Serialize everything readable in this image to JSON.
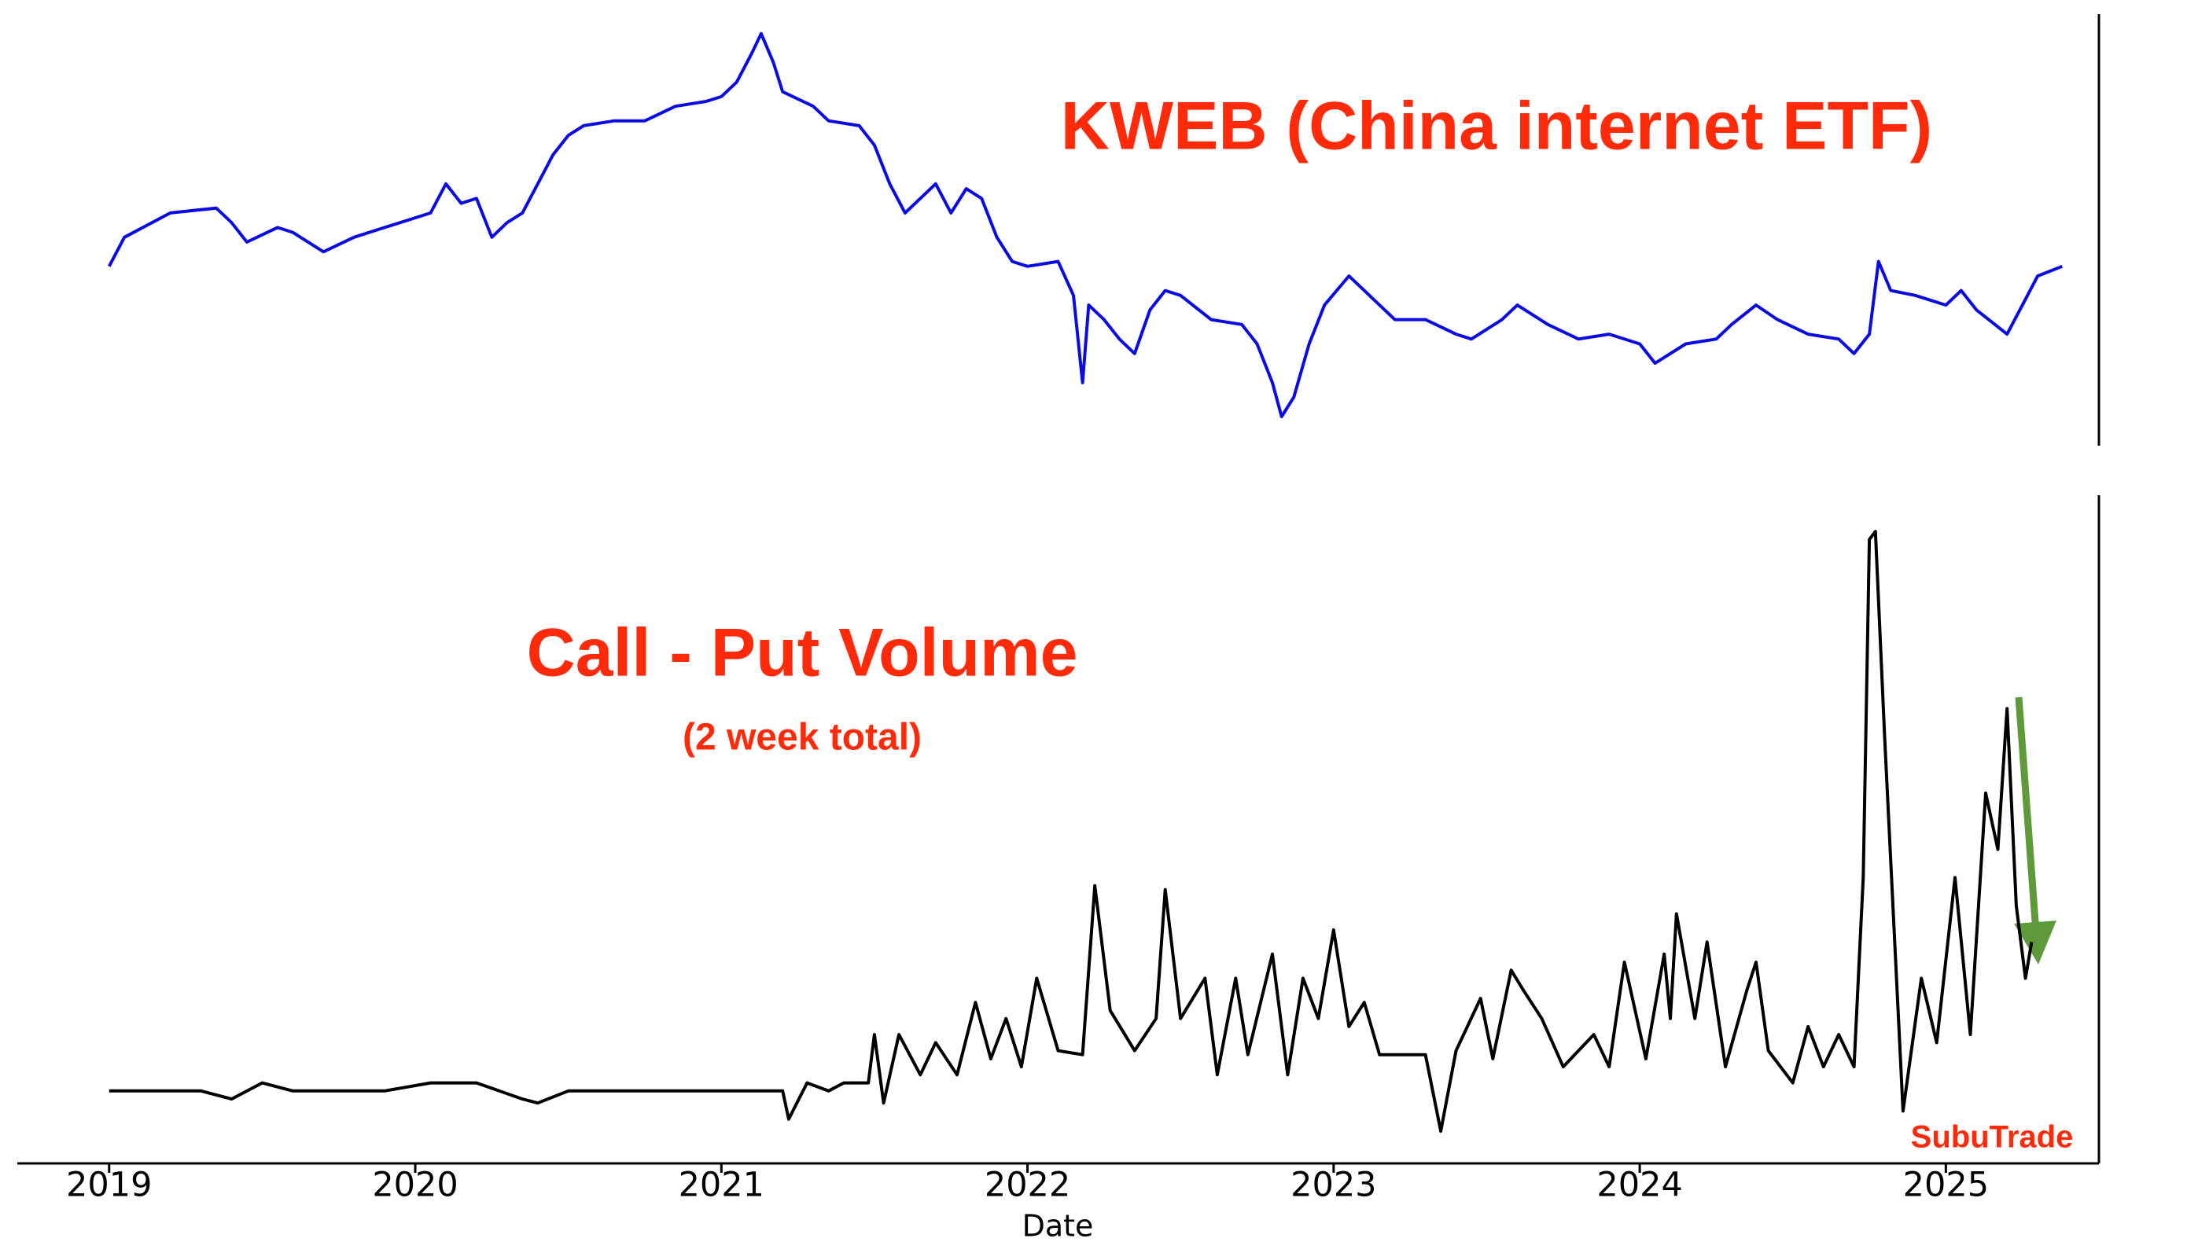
{
  "chart_data": [
    {
      "type": "line",
      "title": "KWEB (China internet ETF)",
      "xlim": [
        2018.7,
        2025.5
      ],
      "ylim": [
        15,
        104
      ],
      "series": [
        {
          "name": "KWEB",
          "color": "#0a0ae6",
          "x": [
            2019.0,
            2019.05,
            2019.2,
            2019.35,
            2019.4,
            2019.45,
            2019.55,
            2019.6,
            2019.7,
            2019.8,
            2019.9,
            2020.0,
            2020.05,
            2020.1,
            2020.15,
            2020.2,
            2020.25,
            2020.3,
            2020.35,
            2020.4,
            2020.45,
            2020.5,
            2020.55,
            2020.65,
            2020.75,
            2020.85,
            2020.95,
            2021.0,
            2021.05,
            2021.1,
            2021.13,
            2021.17,
            2021.2,
            2021.3,
            2021.35,
            2021.45,
            2021.5,
            2021.55,
            2021.6,
            2021.65,
            2021.7,
            2021.75,
            2021.8,
            2021.85,
            2021.9,
            2021.95,
            2022.0,
            2022.1,
            2022.15,
            2022.18,
            2022.2,
            2022.25,
            2022.3,
            2022.35,
            2022.4,
            2022.45,
            2022.5,
            2022.6,
            2022.7,
            2022.75,
            2022.8,
            2022.83,
            2022.87,
            2022.92,
            2022.97,
            2023.05,
            2023.1,
            2023.2,
            2023.3,
            2023.4,
            2023.45,
            2023.55,
            2023.6,
            2023.7,
            2023.8,
            2023.9,
            2024.0,
            2024.05,
            2024.15,
            2024.25,
            2024.3,
            2024.38,
            2024.45,
            2024.55,
            2024.65,
            2024.7,
            2024.75,
            2024.78,
            2024.82,
            2024.9,
            2025.0,
            2025.05,
            2025.1,
            2025.2,
            2025.25,
            2025.3,
            2025.38
          ],
          "values": [
            52,
            58,
            63,
            64,
            61,
            57,
            60,
            59,
            55,
            58,
            60,
            62,
            63,
            69,
            65,
            66,
            58,
            61,
            63,
            69,
            75,
            79,
            81,
            82,
            82,
            85,
            86,
            87,
            90,
            96,
            100,
            94,
            88,
            85,
            82,
            81,
            77,
            69,
            63,
            66,
            69,
            63,
            68,
            66,
            58,
            53,
            52,
            53,
            46,
            28,
            44,
            41,
            37,
            34,
            43,
            47,
            46,
            41,
            40,
            36,
            28,
            21,
            25,
            36,
            44,
            50,
            47,
            41,
            41,
            38,
            37,
            41,
            44,
            40,
            37,
            38,
            36,
            32,
            36,
            37,
            40,
            44,
            41,
            38,
            37,
            34,
            38,
            53,
            47,
            46,
            44,
            47,
            43,
            38,
            44,
            50,
            52
          ]
        }
      ]
    },
    {
      "type": "line",
      "title": "Call - Put Volume",
      "subtitle": "(2 week total)",
      "xlabel": "Date",
      "annotation": "SubuTrade",
      "xlim": [
        2018.7,
        2025.5
      ],
      "ylim": [
        -0.9,
        7.4
      ],
      "xticks": [
        2019,
        2020,
        2021,
        2022,
        2023,
        2024,
        2025
      ],
      "series": [
        {
          "name": "Call - Put Volume",
          "color": "#000000",
          "x": [
            2019.0,
            2019.3,
            2019.4,
            2019.5,
            2019.6,
            2019.9,
            2020.05,
            2020.2,
            2020.35,
            2020.4,
            2020.5,
            2020.9,
            2021.0,
            2021.2,
            2021.22,
            2021.28,
            2021.35,
            2021.4,
            2021.48,
            2021.5,
            2021.53,
            2021.58,
            2021.65,
            2021.7,
            2021.77,
            2021.83,
            2021.88,
            2021.93,
            2021.98,
            2022.03,
            2022.1,
            2022.18,
            2022.22,
            2022.27,
            2022.35,
            2022.42,
            2022.45,
            2022.5,
            2022.58,
            2022.62,
            2022.68,
            2022.72,
            2022.8,
            2022.85,
            2022.9,
            2022.95,
            2023.0,
            2023.05,
            2023.1,
            2023.15,
            2023.3,
            2023.35,
            2023.4,
            2023.48,
            2023.52,
            2023.58,
            2023.62,
            2023.68,
            2023.75,
            2023.85,
            2023.9,
            2023.95,
            2024.02,
            2024.08,
            2024.1,
            2024.12,
            2024.18,
            2024.22,
            2024.28,
            2024.35,
            2024.38,
            2024.42,
            2024.5,
            2024.55,
            2024.6,
            2024.65,
            2024.7,
            2024.73,
            2024.75,
            2024.77,
            2024.8,
            2024.86,
            2024.92,
            2024.97,
            2025.03,
            2025.08,
            2025.13,
            2025.17,
            2025.2,
            2025.23,
            2025.26,
            2025.28
          ],
          "values": [
            0,
            0,
            -0.1,
            0.1,
            0,
            0,
            0.1,
            0.1,
            -0.1,
            -0.15,
            0,
            0,
            0,
            0,
            -0.35,
            0.1,
            0,
            0.1,
            0.1,
            0.7,
            -0.15,
            0.7,
            0.2,
            0.6,
            0.2,
            1.1,
            0.4,
            0.9,
            0.3,
            1.4,
            0.5,
            0.45,
            2.55,
            1.0,
            0.5,
            0.9,
            2.5,
            0.9,
            1.4,
            0.2,
            1.4,
            0.45,
            1.7,
            0.2,
            1.4,
            0.9,
            2.0,
            0.8,
            1.1,
            0.45,
            0.45,
            -0.5,
            0.5,
            1.15,
            0.4,
            1.5,
            1.25,
            0.9,
            0.3,
            0.7,
            0.3,
            1.6,
            0.4,
            1.7,
            0.9,
            2.2,
            0.9,
            1.85,
            0.3,
            1.25,
            1.6,
            0.5,
            0.1,
            0.8,
            0.3,
            0.7,
            0.3,
            2.65,
            6.85,
            6.95,
            4.4,
            -0.25,
            1.4,
            0.6,
            2.65,
            0.7,
            3.7,
            3.0,
            4.75,
            2.3,
            1.4,
            1.85
          ]
        }
      ]
    }
  ]
}
